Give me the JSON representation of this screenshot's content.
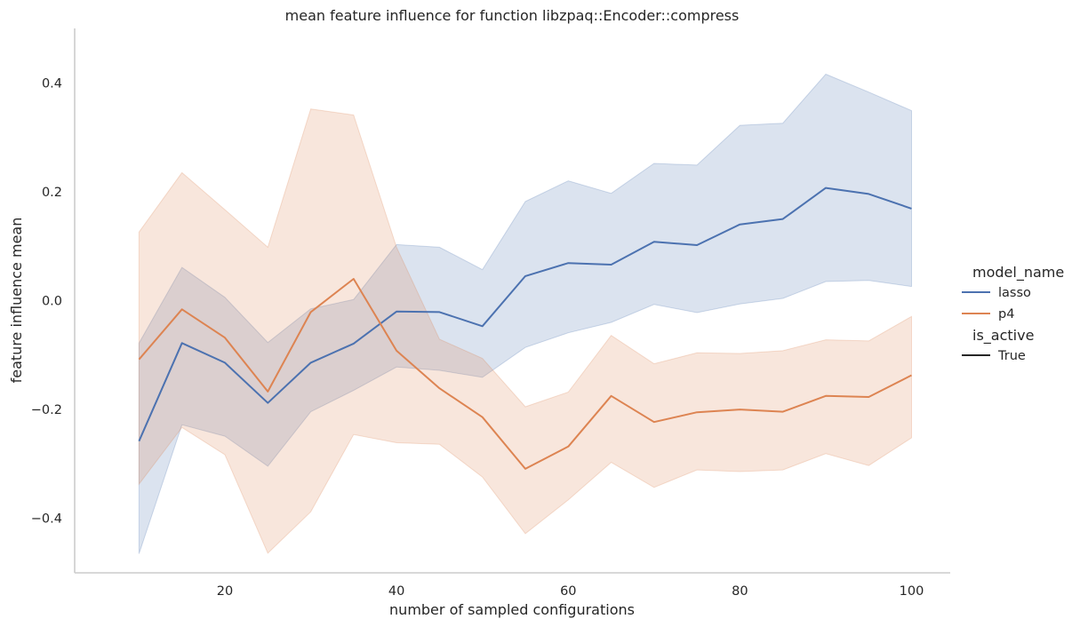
{
  "chart_data": {
    "type": "line",
    "title": "mean feature influence for function libzpaq::Encoder::compress",
    "xlabel": "number of sampled configurations",
    "ylabel": "feature influence mean",
    "xlim": [
      2.5,
      104.5
    ],
    "ylim": [
      -0.5,
      0.5
    ],
    "x_ticks": [
      20,
      40,
      60,
      80,
      100
    ],
    "y_ticks": [
      -0.4,
      -0.2,
      0.0,
      0.2,
      0.4
    ],
    "y_tick_labels": [
      "−0.4",
      "−0.2",
      "0.0",
      "0.2",
      "0.4"
    ],
    "grid": false,
    "legend": {
      "placement": "right",
      "hue_title": "model_name",
      "style_title": "is_active",
      "style_entries": [
        "True"
      ]
    },
    "x": [
      10,
      15,
      20,
      25,
      30,
      35,
      40,
      45,
      50,
      55,
      60,
      65,
      70,
      75,
      80,
      85,
      90,
      95,
      100
    ],
    "series": [
      {
        "name": "lasso",
        "color": "#4c72b0",
        "values": [
          -0.258,
          -0.078,
          -0.114,
          -0.188,
          -0.114,
          -0.079,
          -0.02,
          -0.021,
          -0.047,
          0.045,
          0.069,
          0.066,
          0.108,
          0.102,
          0.14,
          0.15,
          0.207,
          0.196,
          0.169
        ],
        "ci_upper": [
          -0.078,
          0.061,
          0.006,
          -0.077,
          -0.015,
          0.002,
          0.103,
          0.098,
          0.057,
          0.182,
          0.22,
          0.197,
          0.252,
          0.249,
          0.322,
          0.326,
          0.416,
          0.383,
          0.349
        ],
        "ci_lower": [
          -0.465,
          -0.228,
          -0.249,
          -0.304,
          -0.204,
          -0.165,
          -0.122,
          -0.128,
          -0.141,
          -0.086,
          -0.059,
          -0.04,
          -0.007,
          -0.022,
          -0.006,
          0.004,
          0.035,
          0.037,
          0.026
        ]
      },
      {
        "name": "p4",
        "color": "#dd8452",
        "values": [
          -0.108,
          -0.016,
          -0.068,
          -0.167,
          -0.021,
          0.04,
          -0.092,
          -0.161,
          -0.214,
          -0.309,
          -0.268,
          -0.175,
          -0.223,
          -0.205,
          -0.2,
          -0.204,
          -0.175,
          -0.177,
          -0.137
        ],
        "ci_upper": [
          0.126,
          0.235,
          0.167,
          0.098,
          0.352,
          0.341,
          0.098,
          -0.071,
          -0.106,
          -0.195,
          -0.168,
          -0.064,
          -0.116,
          -0.096,
          -0.097,
          -0.092,
          -0.072,
          -0.074,
          -0.029
        ],
        "ci_lower": [
          -0.337,
          -0.233,
          -0.283,
          -0.464,
          -0.388,
          -0.246,
          -0.261,
          -0.264,
          -0.324,
          -0.428,
          -0.366,
          -0.297,
          -0.343,
          -0.311,
          -0.314,
          -0.311,
          -0.281,
          -0.303,
          -0.252
        ]
      }
    ]
  }
}
